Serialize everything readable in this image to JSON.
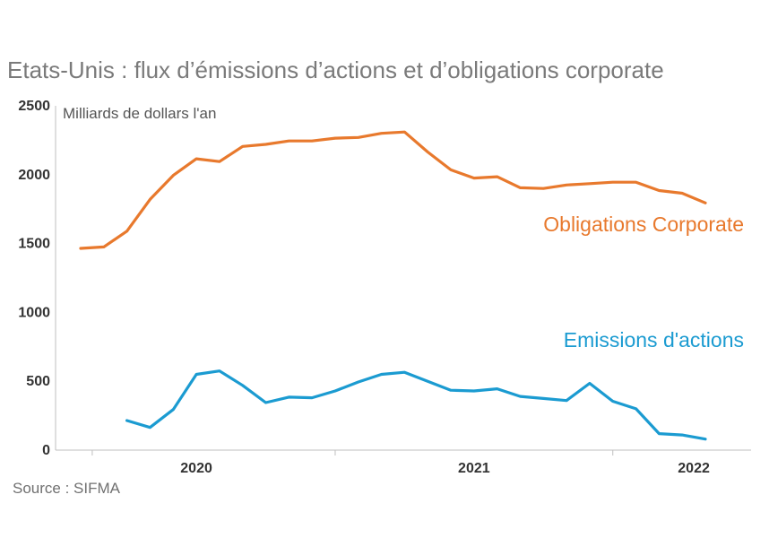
{
  "chart_data": {
    "type": "line",
    "title": "Etats-Unis : flux d’émissions d’actions et d’obligations corporate",
    "ylabel": "Milliards de dollars l'an",
    "xlabel": "",
    "ylim": [
      0,
      2500
    ],
    "yticks": [
      "0",
      "500",
      "1000",
      "1500",
      "2000",
      "2500"
    ],
    "ytick_values": [
      0,
      500,
      1000,
      1500,
      2000,
      2500
    ],
    "xticks": [
      "2020",
      "2021",
      "2022"
    ],
    "xtick_index_positions": [
      5,
      17,
      26.5
    ],
    "xgrid_index_positions": [
      0.5,
      11,
      23,
      30
    ],
    "n_points": 28,
    "series": [
      {
        "name": "Obligations Corporate",
        "color": "#e8792d",
        "start_index": 0,
        "values": [
          1465,
          1475,
          1590,
          1820,
          1995,
          2115,
          2095,
          2205,
          2220,
          2245,
          2245,
          2265,
          2270,
          2300,
          2310,
          2165,
          2035,
          1975,
          1985,
          1905,
          1900,
          1925,
          1935,
          1945,
          1945,
          1885,
          1865,
          1795
        ]
      },
      {
        "name": "Emissions d'actions",
        "color": "#1b9bd1",
        "start_index": 2,
        "values": [
          215,
          165,
          295,
          550,
          575,
          470,
          345,
          385,
          380,
          430,
          495,
          550,
          565,
          500,
          435,
          430,
          445,
          390,
          375,
          360,
          485,
          355,
          300,
          120,
          110,
          80
        ]
      }
    ],
    "source": "Source : SIFMA"
  }
}
